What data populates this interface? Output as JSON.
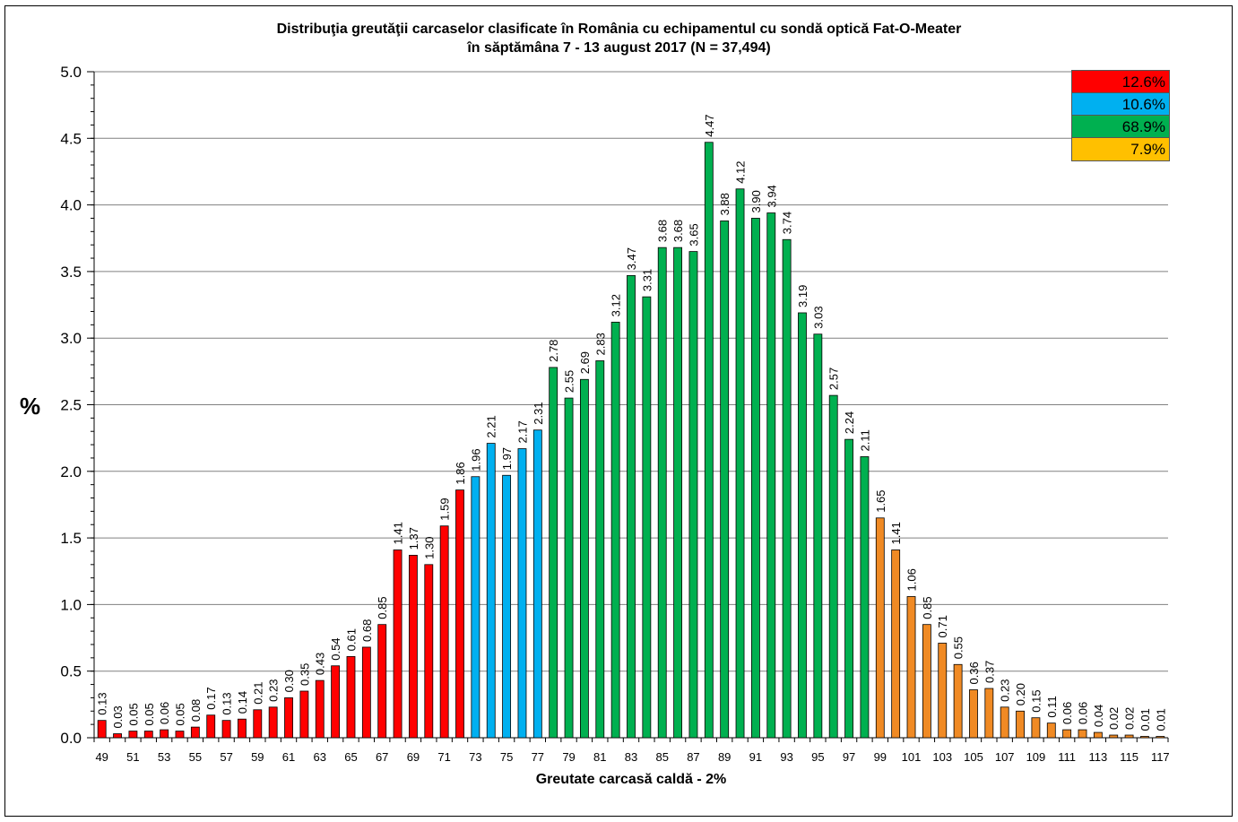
{
  "title_line1": "Distribuţia greutăţii carcaselor clasificate în România cu echipamentul cu sondă optică Fat-O-Meater",
  "title_line2": "în săptămâna  7 - 13 august 2017 (N = 37,494)",
  "chart_data": {
    "type": "bar",
    "title": "Distribuţia greutăţii carcaselor clasificate în România cu echipamentul cu sondă optică Fat-O-Meater în săptămâna  7 - 13 august 2017 (N = 37,494)",
    "xlabel": "Greutate carcasă caldă - 2%",
    "ylabel": "%",
    "ylim": [
      0,
      5.0
    ],
    "y_ticks": [
      "0.0",
      "0.5",
      "1.0",
      "1.5",
      "2.0",
      "2.5",
      "3.0",
      "3.5",
      "4.0",
      "4.5",
      "5.0"
    ],
    "grid": true,
    "x": [
      49,
      50,
      51,
      52,
      53,
      54,
      55,
      56,
      57,
      58,
      59,
      60,
      61,
      62,
      63,
      64,
      65,
      66,
      67,
      68,
      69,
      70,
      71,
      72,
      73,
      74,
      75,
      76,
      77,
      78,
      79,
      80,
      81,
      82,
      83,
      84,
      85,
      86,
      87,
      88,
      89,
      90,
      91,
      92,
      93,
      94,
      95,
      96,
      97,
      98,
      99,
      100,
      101,
      102,
      103,
      104,
      105,
      106,
      107,
      108,
      109,
      110,
      111,
      112,
      113,
      114,
      115,
      116,
      117
    ],
    "values": [
      0.13,
      0.03,
      0.05,
      0.05,
      0.06,
      0.05,
      0.08,
      0.17,
      0.13,
      0.14,
      0.21,
      0.23,
      0.3,
      0.35,
      0.43,
      0.54,
      0.61,
      0.68,
      0.85,
      1.41,
      1.37,
      1.3,
      1.59,
      1.86,
      1.96,
      2.21,
      1.97,
      2.17,
      2.31,
      2.78,
      2.55,
      2.69,
      2.83,
      3.12,
      3.47,
      3.31,
      3.68,
      3.68,
      3.65,
      4.47,
      3.88,
      4.12,
      3.9,
      3.94,
      3.74,
      3.19,
      3.03,
      2.57,
      2.24,
      2.11,
      1.65,
      1.41,
      1.06,
      0.85,
      0.71,
      0.55,
      0.36,
      0.37,
      0.23,
      0.2,
      0.15,
      0.11,
      0.06,
      0.06,
      0.04,
      0.02,
      0.02,
      0.01,
      0.01
    ],
    "value_labels": [
      "0.13",
      "0.03",
      "0.05",
      "0.05",
      "0.06",
      "0.05",
      "0.08",
      "0.17",
      "0.13",
      "0.14",
      "0.21",
      "0.23",
      "0.30",
      "0.35",
      "0.43",
      "0.54",
      "0.61",
      "0.68",
      "0.85",
      "1.41",
      "1.37",
      "1.30",
      "1.59",
      "1.86",
      "1.96",
      "2.21",
      "1.97",
      "2.17",
      "2.31",
      "2.78",
      "2.55",
      "2.69",
      "2.83",
      "3.12",
      "3.47",
      "3.31",
      "3.68",
      "3.68",
      "3.65",
      "4.47",
      "3.88",
      "4.12",
      "3.90",
      "3.94",
      "3.74",
      "3.19",
      "3.03",
      "2.57",
      "2.24",
      "2.11",
      "1.65",
      "1.41",
      "1.06",
      "0.85",
      "0.71",
      "0.55",
      "0.36",
      "0.37",
      "0.23",
      "0.20",
      "0.15",
      "0.11",
      "0.06",
      "0.06",
      "0.04",
      "0.02",
      "0.02",
      "0.01",
      "0.01"
    ],
    "x_tick_labels": [
      "49",
      "51",
      "53",
      "55",
      "57",
      "59",
      "61",
      "63",
      "65",
      "67",
      "69",
      "71",
      "73",
      "75",
      "77",
      "79",
      "81",
      "83",
      "85",
      "87",
      "89",
      "91",
      "93",
      "95",
      "97",
      "99",
      "101",
      "103",
      "105",
      "107",
      "109",
      "111",
      "113",
      "115",
      "117"
    ],
    "color_groups": [
      {
        "from": 49,
        "to": 72,
        "color": "#ff0000"
      },
      {
        "from": 73,
        "to": 77,
        "color": "#00b0f0"
      },
      {
        "from": 78,
        "to": 98,
        "color": "#00b050"
      },
      {
        "from": 99,
        "to": 117,
        "color": "#f08a24"
      }
    ],
    "legend": [
      {
        "label": "12.6%",
        "color": "#ff0000"
      },
      {
        "label": "10.6%",
        "color": "#00b0f0"
      },
      {
        "label": "68.9%",
        "color": "#00b050"
      },
      {
        "label": "7.9%",
        "color": "#ffc000"
      }
    ],
    "legend_position": "top-right"
  }
}
